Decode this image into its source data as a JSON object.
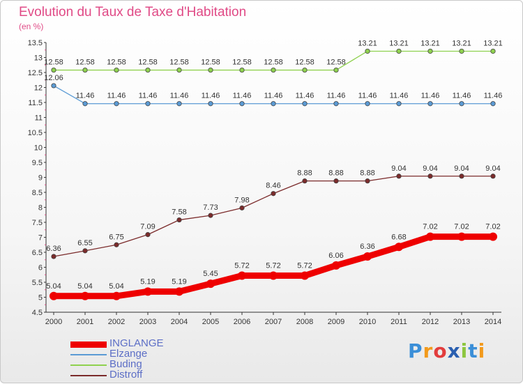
{
  "header": {
    "title": "Evolution du Taux de Taxe d'Habitation",
    "subtitle": "(en %)"
  },
  "chart_data": {
    "type": "line",
    "title": "Evolution du Taux de Taxe d'Habitation",
    "ylabel": "(en %)",
    "xlabel": "",
    "x": [
      "2000",
      "2001",
      "2002",
      "2003",
      "2004",
      "2005",
      "2006",
      "2007",
      "2008",
      "2009",
      "2010",
      "2011",
      "2012",
      "2013",
      "2014"
    ],
    "ylim": [
      4.5,
      13.5
    ],
    "yticks": [
      "4.5",
      "5",
      "5.5",
      "6",
      "6.5",
      "7",
      "7.5",
      "8",
      "8.5",
      "9",
      "9.5",
      "10",
      "10.5",
      "11",
      "11.5",
      "12",
      "12.5",
      "13",
      "13.5"
    ],
    "grid": false,
    "legend_position": "bottom-left",
    "series": [
      {
        "name": "INGLANGE",
        "color": "#ee0000",
        "values": [
          5.04,
          5.04,
          5.04,
          5.19,
          5.19,
          5.45,
          5.72,
          5.72,
          5.72,
          6.06,
          6.36,
          6.68,
          7.02,
          7.02,
          7.02
        ],
        "labels": [
          "5.04",
          "5.04",
          "5.04",
          "5.19",
          "5.19",
          "5.45",
          "5.72",
          "5.72",
          "5.72",
          "6.06",
          "6.36",
          "6.68",
          "7.02",
          "7.02",
          "7.02"
        ]
      },
      {
        "name": "Elzange",
        "color": "#5b9bd5",
        "values": [
          12.06,
          11.46,
          11.46,
          11.46,
          11.46,
          11.46,
          11.46,
          11.46,
          11.46,
          11.46,
          11.46,
          11.46,
          11.46,
          11.46,
          11.46
        ],
        "labels": [
          "12.06",
          "11.46",
          "11.46",
          "11.46",
          "11.46",
          "11.46",
          "11.46",
          "11.46",
          "11.46",
          "11.46",
          "11.46",
          "11.46",
          "11.46",
          "11.46",
          "11.46"
        ]
      },
      {
        "name": "Buding",
        "color": "#8fd14f",
        "values": [
          12.58,
          12.58,
          12.58,
          12.58,
          12.58,
          12.58,
          12.58,
          12.58,
          12.58,
          12.58,
          13.21,
          13.21,
          13.21,
          13.21,
          13.21
        ],
        "labels": [
          "12.58",
          "12.58",
          "12.58",
          "12.58",
          "12.58",
          "12.58",
          "12.58",
          "12.58",
          "12.58",
          "12.58",
          "13.21",
          "13.21",
          "13.21",
          "13.21",
          "13.21"
        ]
      },
      {
        "name": "Distroff",
        "color": "#7b2b2b",
        "values": [
          6.36,
          6.55,
          6.75,
          7.09,
          7.58,
          7.73,
          7.98,
          8.46,
          8.88,
          8.88,
          8.88,
          9.04,
          9.04,
          9.04,
          9.04
        ],
        "labels": [
          "6.36",
          "6.55",
          "6.75",
          "7.09",
          "7.58",
          "7.73",
          "7.98",
          "8.46",
          "8.88",
          "8.88",
          "8.88",
          "9.04",
          "9.04",
          "9.04",
          "9.04"
        ]
      }
    ]
  },
  "legend": {
    "items": [
      {
        "label": "INGLANGE",
        "color": "#ee0000"
      },
      {
        "label": "Elzange",
        "color": "#5b9bd5"
      },
      {
        "label": "Buding",
        "color": "#8fd14f"
      },
      {
        "label": "Distroff",
        "color": "#7b2b2b"
      }
    ]
  },
  "logo": {
    "text": "Proxiti",
    "letters": [
      "P",
      "r",
      "o",
      "x",
      "i",
      "t",
      "i"
    ],
    "colors": [
      "#3b8fd8",
      "#f29a1c",
      "#e23d3d",
      "#2a5fb0",
      "#8dc63f",
      "#3b8fd8",
      "#f29a1c"
    ]
  }
}
